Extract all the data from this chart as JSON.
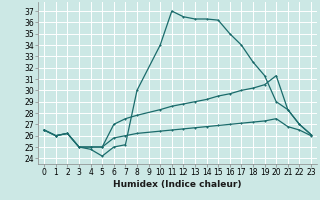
{
  "xlabel": "Humidex (Indice chaleur)",
  "bg_color": "#cce8e5",
  "grid_color": "#ffffff",
  "line_color": "#1a6b6b",
  "xlim": [
    -0.5,
    23.5
  ],
  "ylim": [
    23.5,
    37.8
  ],
  "xticks": [
    0,
    1,
    2,
    3,
    4,
    5,
    6,
    7,
    8,
    9,
    10,
    11,
    12,
    13,
    14,
    15,
    16,
    17,
    18,
    19,
    20,
    21,
    22,
    23
  ],
  "yticks": [
    24,
    25,
    26,
    27,
    28,
    29,
    30,
    31,
    32,
    33,
    34,
    35,
    36,
    37
  ],
  "line1_x": [
    0,
    1,
    2,
    3,
    4,
    5,
    6,
    7,
    8,
    10,
    11,
    12,
    13,
    14,
    15,
    16,
    17,
    18,
    19,
    20,
    21,
    22,
    23
  ],
  "line1_y": [
    26.5,
    26.0,
    26.2,
    25.0,
    24.8,
    24.2,
    25.0,
    25.2,
    30.0,
    34.0,
    37.0,
    36.5,
    36.3,
    36.3,
    36.2,
    35.0,
    34.0,
    32.5,
    31.3,
    29.0,
    28.3,
    27.0,
    26.1
  ],
  "line2_x": [
    0,
    1,
    2,
    3,
    4,
    5,
    6,
    7,
    8,
    10,
    11,
    12,
    13,
    14,
    15,
    16,
    17,
    18,
    19,
    20,
    21,
    22,
    23
  ],
  "line2_y": [
    26.5,
    26.0,
    26.2,
    25.0,
    25.0,
    25.0,
    27.0,
    27.5,
    27.8,
    28.3,
    28.6,
    28.8,
    29.0,
    29.2,
    29.5,
    29.7,
    30.0,
    30.2,
    30.5,
    31.3,
    28.3,
    27.0,
    26.1
  ],
  "line3_x": [
    0,
    1,
    2,
    3,
    4,
    5,
    6,
    7,
    8,
    10,
    11,
    12,
    13,
    14,
    15,
    16,
    17,
    18,
    19,
    20,
    21,
    22,
    23
  ],
  "line3_y": [
    26.5,
    26.0,
    26.2,
    25.0,
    25.0,
    25.0,
    25.8,
    26.0,
    26.2,
    26.4,
    26.5,
    26.6,
    26.7,
    26.8,
    26.9,
    27.0,
    27.1,
    27.2,
    27.3,
    27.5,
    26.8,
    26.5,
    26.0
  ],
  "tick_fontsize": 5.5,
  "xlabel_fontsize": 6.5,
  "linewidth": 0.9,
  "markersize": 2.0
}
